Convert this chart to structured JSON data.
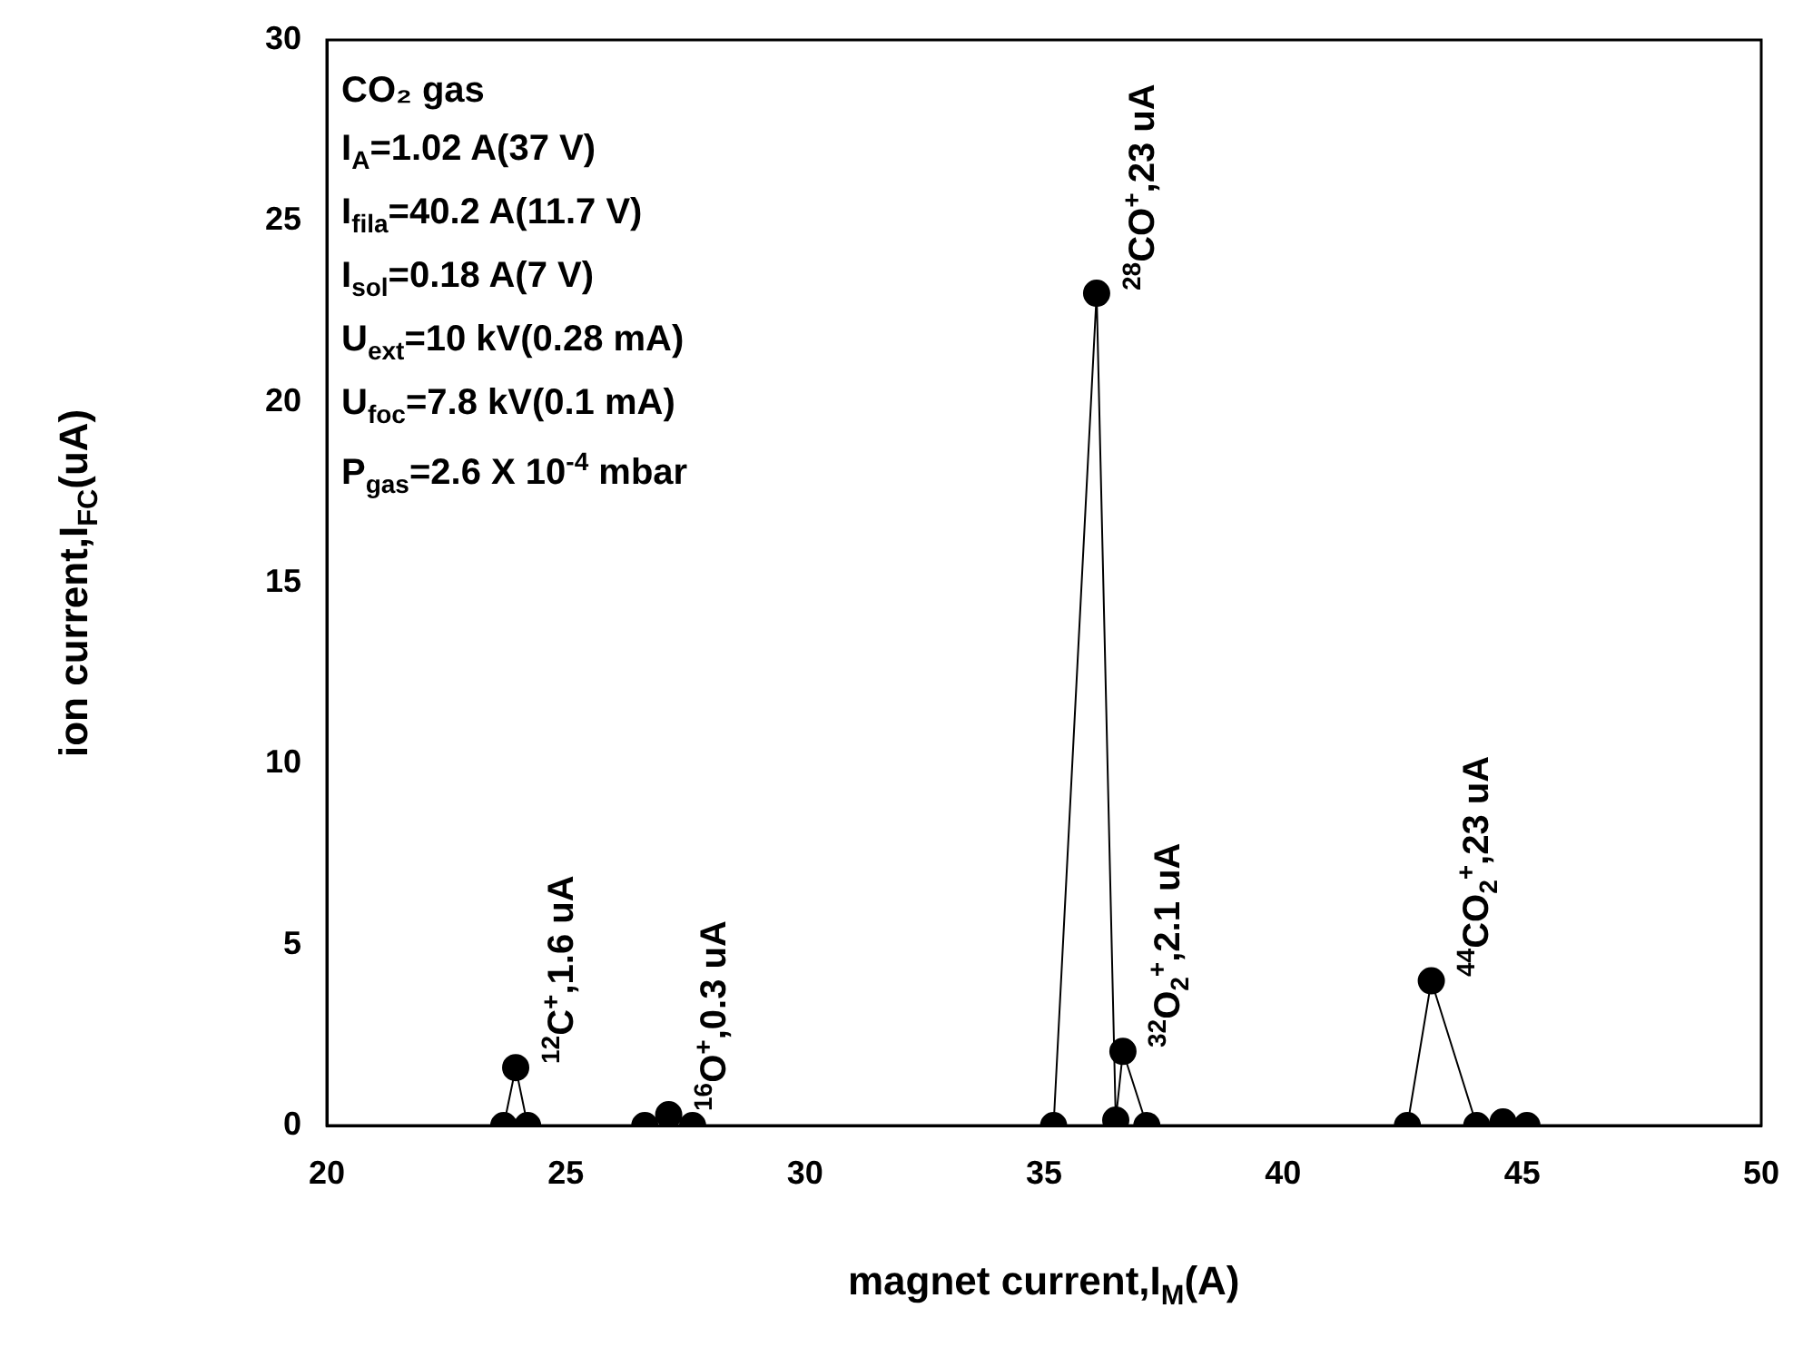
{
  "chart_data": {
    "type": "line",
    "xlabel": "magnet current,I$_{M}$(A)",
    "ylabel": "ion current,I$_{FC}$(uA)",
    "x": [
      23.7,
      23.95,
      24.2,
      26.65,
      27.15,
      27.65,
      35.2,
      36.1,
      36.5,
      36.65,
      37.15,
      42.6,
      43.1,
      44.05,
      44.6,
      45.1
    ],
    "series": [
      {
        "color": "#000000",
        "values": [
          0,
          1.6,
          0,
          0,
          0.3,
          0,
          0,
          23,
          0.15,
          2.05,
          0,
          0,
          4,
          0,
          0.1,
          0
        ]
      }
    ],
    "xlim": [
      20,
      50
    ],
    "xticks": [
      20,
      25,
      30,
      35,
      40,
      45,
      50
    ],
    "ylim": [
      0,
      30
    ],
    "yticks": [
      0,
      5,
      10,
      15,
      20,
      25,
      30
    ],
    "grid": false,
    "legend": false,
    "marker": "circle",
    "line_style": "solid",
    "annotations": [
      "CO₂ gas",
      "I$_{A}$=1.02 A(37 V)",
      "I$_{fila}$=40.2 A(11.7 V)",
      "I$_{sol}$=0.18 A(7 V)",
      "U$_{ext}$=10 kV(0.28 mA)",
      "U$_{foc}$=7.8 kV(0.1 mA)",
      "P$_{gas}$=2.6 X 10$^{-4}$ mbar",
      {
        "text": "$^{12}$C$^{+}$,1.6 uA",
        "x": 23.95,
        "y": 1.6
      },
      {
        "text": "$^{16}$O$^{+}$,0.3 uA",
        "x": 27.15,
        "y": 0.3
      },
      {
        "text": "$^{28}$CO$^{+}$,23 uA",
        "x": 36.1,
        "y": 23
      },
      {
        "text": "$^{32}$O$_{2}$$^{+}$,2.1 uA",
        "x": 36.65,
        "y": 2.05
      },
      {
        "text": "$^{44}$CO$_{2}$$^{+}$,23 uA",
        "x": 43.1,
        "y": 4
      }
    ]
  }
}
